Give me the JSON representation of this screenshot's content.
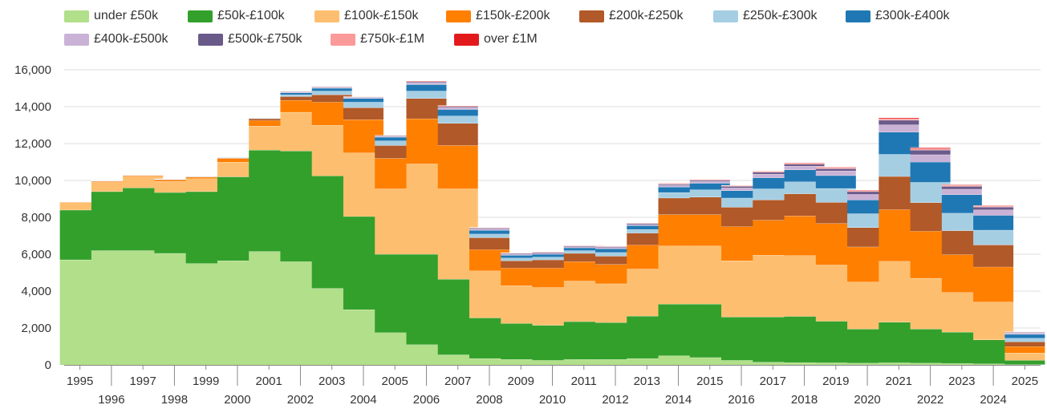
{
  "chart_data": {
    "type": "bar",
    "stacked": true,
    "title": "",
    "xlabel": "",
    "ylabel": "",
    "ylim": [
      0,
      16000
    ],
    "yticks": [
      "0",
      "2,000",
      "4,000",
      "6,000",
      "8,000",
      "10,000",
      "12,000",
      "14,000",
      "16,000"
    ],
    "ytick_values": [
      0,
      2000,
      4000,
      6000,
      8000,
      10000,
      12000,
      14000,
      16000
    ],
    "grid": true,
    "legend_position": "top",
    "categories": [
      "1995",
      "1996",
      "1997",
      "1998",
      "1999",
      "2000",
      "2001",
      "2002",
      "2003",
      "2004",
      "2005",
      "2006",
      "2007",
      "2008",
      "2009",
      "2010",
      "2011",
      "2012",
      "2013",
      "2014",
      "2015",
      "2016",
      "2017",
      "2018",
      "2019",
      "2020",
      "2021",
      "2022",
      "2023",
      "2024",
      "2025"
    ],
    "series": [
      {
        "name": "under £50k",
        "color": "#b2df8a",
        "values": [
          5700,
          6200,
          6200,
          6050,
          5500,
          5650,
          6150,
          5600,
          4150,
          3000,
          1750,
          1100,
          550,
          350,
          300,
          250,
          300,
          300,
          350,
          500,
          400,
          250,
          150,
          130,
          120,
          100,
          120,
          100,
          80,
          60,
          20
        ]
      },
      {
        "name": "£50k-£100k",
        "color": "#33a02c",
        "values": [
          2700,
          3200,
          3400,
          3300,
          3900,
          4550,
          5500,
          6000,
          6100,
          5050,
          4250,
          4900,
          4100,
          2200,
          1950,
          1900,
          2050,
          2000,
          2300,
          2800,
          2900,
          2350,
          2450,
          2500,
          2250,
          1850,
          2200,
          1850,
          1700,
          1300,
          230
        ]
      },
      {
        "name": "£100k-£150k",
        "color": "#fdbf6f",
        "values": [
          400,
          500,
          600,
          600,
          700,
          800,
          1300,
          2100,
          2750,
          3450,
          3550,
          4900,
          4900,
          2550,
          2050,
          2050,
          2200,
          2100,
          2550,
          3150,
          3150,
          3050,
          3350,
          3300,
          3050,
          2550,
          3300,
          2750,
          2150,
          2050,
          400
        ]
      },
      {
        "name": "£150k-£200k",
        "color": "#ff7f00",
        "values": [
          30,
          50,
          60,
          80,
          80,
          200,
          300,
          650,
          1250,
          1800,
          1650,
          2450,
          2350,
          1150,
          950,
          1050,
          1050,
          1050,
          1300,
          1700,
          1700,
          1850,
          1900,
          2150,
          2250,
          1900,
          2800,
          2550,
          2050,
          1900,
          350
        ]
      },
      {
        "name": "£200k-£250k",
        "color": "#b15928",
        "values": [
          10,
          20,
          20,
          20,
          20,
          20,
          100,
          200,
          400,
          650,
          700,
          1100,
          1200,
          650,
          400,
          450,
          450,
          450,
          650,
          900,
          950,
          1050,
          1100,
          1200,
          1150,
          1050,
          1800,
          1550,
          1300,
          1200,
          260
        ]
      },
      {
        "name": "£250k-£300k",
        "color": "#a6cee3",
        "values": [
          5,
          5,
          5,
          10,
          10,
          20,
          20,
          100,
          200,
          300,
          250,
          400,
          400,
          200,
          150,
          150,
          150,
          200,
          200,
          300,
          400,
          500,
          600,
          650,
          750,
          750,
          1200,
          1100,
          950,
          800,
          190
        ]
      },
      {
        "name": "£300k-£400k",
        "color": "#1f78b4",
        "values": [
          5,
          5,
          10,
          10,
          10,
          20,
          20,
          100,
          150,
          200,
          200,
          350,
          350,
          200,
          150,
          150,
          150,
          200,
          200,
          300,
          350,
          400,
          600,
          650,
          700,
          750,
          1200,
          1100,
          1000,
          800,
          210
        ]
      },
      {
        "name": "£400k-£500k",
        "color": "#cab2d6",
        "values": [
          3,
          3,
          3,
          3,
          3,
          5,
          5,
          40,
          40,
          40,
          40,
          100,
          100,
          80,
          60,
          60,
          60,
          70,
          70,
          100,
          100,
          150,
          200,
          200,
          250,
          300,
          400,
          400,
          300,
          300,
          80
        ]
      },
      {
        "name": "£500k-£750k",
        "color": "#6a5a8a",
        "values": [
          3,
          3,
          3,
          3,
          3,
          5,
          5,
          30,
          30,
          30,
          30,
          50,
          50,
          40,
          40,
          40,
          40,
          40,
          50,
          50,
          60,
          80,
          100,
          100,
          120,
          150,
          250,
          250,
          150,
          150,
          30
        ]
      },
      {
        "name": "£750k-£1M",
        "color": "#fb9a99",
        "values": [
          2,
          2,
          2,
          2,
          2,
          2,
          2,
          10,
          10,
          10,
          10,
          30,
          30,
          20,
          20,
          20,
          20,
          20,
          30,
          30,
          30,
          30,
          40,
          50,
          50,
          50,
          80,
          80,
          60,
          50,
          10
        ]
      },
      {
        "name": "over £1M",
        "color": "#e31a1c",
        "values": [
          2,
          2,
          2,
          2,
          2,
          2,
          2,
          10,
          10,
          10,
          10,
          20,
          20,
          10,
          10,
          10,
          10,
          10,
          10,
          20,
          20,
          20,
          20,
          30,
          30,
          30,
          50,
          50,
          30,
          30,
          5
        ]
      }
    ]
  }
}
